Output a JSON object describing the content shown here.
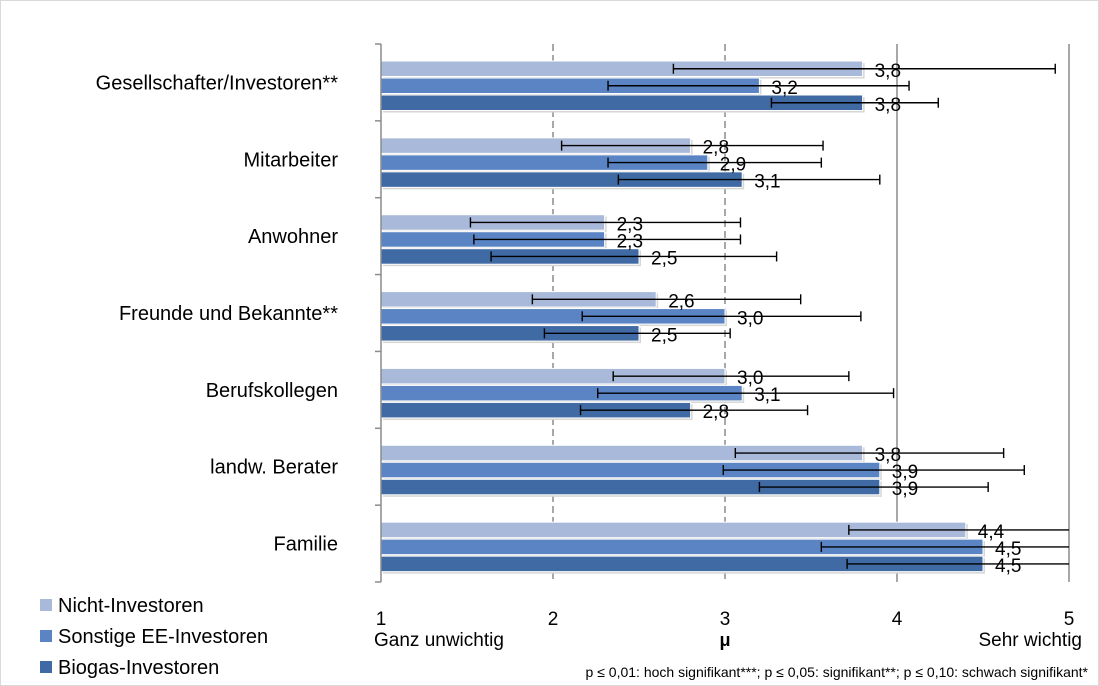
{
  "chart_data": {
    "type": "bar",
    "orientation": "horizontal",
    "categories": [
      "Gesellschafter/Investoren**",
      "Mitarbeiter",
      "Anwohner",
      "Freunde und Bekannte**",
      "Berufskollegen",
      "landw. Berater",
      "Familie"
    ],
    "series": [
      {
        "name": "Nicht-Investoren",
        "color": "#a9b9d9",
        "values": [
          3.8,
          2.8,
          2.3,
          2.6,
          3.0,
          3.8,
          4.4
        ],
        "labels": [
          "3,8",
          "2,8",
          "2,3",
          "2,6",
          "3,0",
          "3,8",
          "4,4"
        ],
        "error_low": [
          2.7,
          2.05,
          1.52,
          1.88,
          2.35,
          3.06,
          3.72
        ],
        "error_high": [
          4.92,
          3.57,
          3.09,
          3.44,
          3.72,
          4.62,
          5.0
        ]
      },
      {
        "name": "Sonstige EE-Investoren",
        "color": "#5a84c4",
        "values": [
          3.2,
          2.9,
          2.3,
          3.0,
          3.1,
          3.9,
          4.5
        ],
        "labels": [
          "3,2",
          "2,9",
          "2,3",
          "3,0",
          "3,1",
          "3,9",
          "4,5"
        ],
        "error_low": [
          2.32,
          2.32,
          1.54,
          2.17,
          2.26,
          2.99,
          3.56
        ],
        "error_high": [
          4.07,
          3.56,
          3.09,
          3.79,
          3.98,
          4.74,
          5.0
        ]
      },
      {
        "name": "Biogas-Investoren",
        "color": "#3f6aa3",
        "values": [
          3.8,
          3.1,
          2.5,
          2.5,
          2.8,
          3.9,
          4.5
        ],
        "labels": [
          "3,8",
          "3,1",
          "2,5",
          "2,5",
          "2,8",
          "3,9",
          "4,5"
        ],
        "error_low": [
          3.27,
          2.38,
          1.64,
          1.95,
          2.16,
          3.2,
          3.71
        ],
        "error_high": [
          4.24,
          3.9,
          3.3,
          3.03,
          3.48,
          4.53,
          5.0
        ]
      }
    ],
    "xlim": [
      1,
      5
    ],
    "x_ticks": [
      "1",
      "2",
      "3",
      "4",
      "5"
    ],
    "x_min_label": "Ganz unwichtig",
    "x_max_label": "Sehr wichtig",
    "xlabel": "μ",
    "grid": true,
    "legend_position": "bottom-left",
    "footnote": "p ≤ 0,01: hoch signifikant***; p ≤ 0,05: signifikant**; p ≤ 0,10: schwach signifikant*"
  }
}
